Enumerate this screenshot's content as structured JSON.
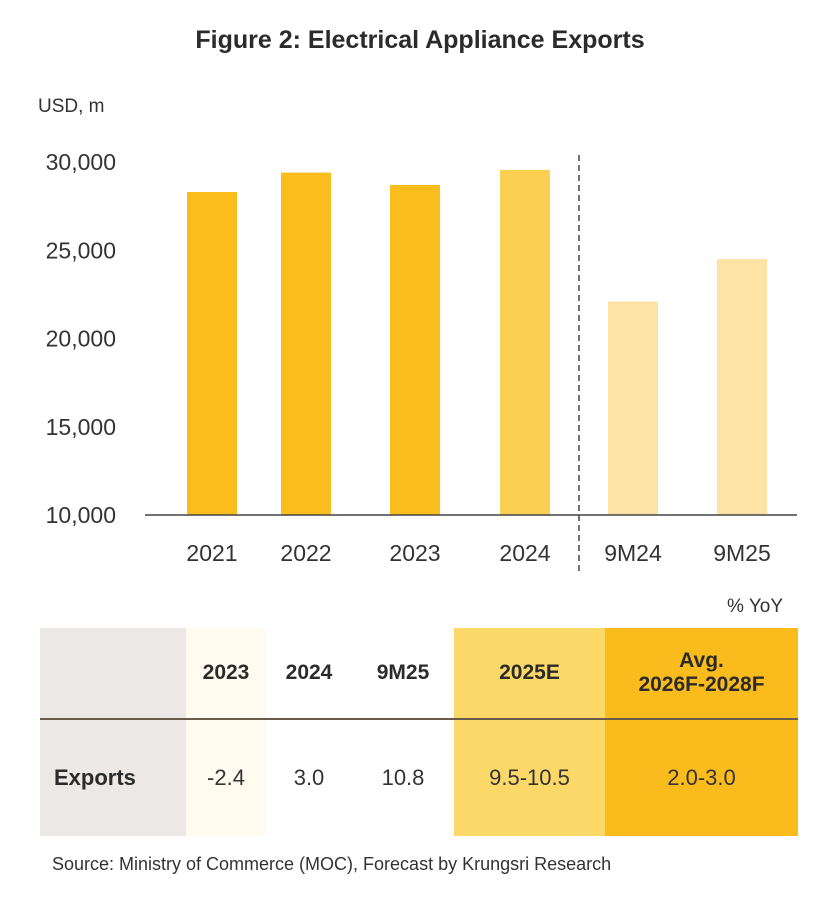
{
  "title": "Figure 2: Electrical Appliance Exports",
  "unit_label": "USD, m",
  "chart_data": {
    "type": "bar",
    "title": "Figure 2: Electrical Appliance Exports",
    "ylabel": "USD, m",
    "xlabel": "",
    "ylim": [
      10000,
      30000
    ],
    "yticks": [
      10000,
      15000,
      20000,
      25000,
      30000
    ],
    "ytick_labels": [
      "10,000",
      "15,000",
      "20,000",
      "25,000",
      "30,000"
    ],
    "categories": [
      "2021",
      "2022",
      "2023",
      "2024",
      "9M24",
      "9M25"
    ],
    "values": [
      28300,
      29400,
      28700,
      29550,
      22100,
      24500
    ],
    "bar_colors": [
      "#fbbc1d",
      "#fbbc1d",
      "#fbbc1d",
      "#fbcf52",
      "#fde4a6",
      "#fde4a6"
    ],
    "divider_after_index": 3
  },
  "table": {
    "unit": "% YoY",
    "headers": [
      "2023",
      "2024",
      "9M25",
      "2025E"
    ],
    "header_avg": [
      "Avg.",
      "2026F-2028F"
    ],
    "row_label": "Exports",
    "values": [
      "-2.4",
      "3.0",
      "10.8",
      "9.5-10.5",
      "2.0-3.0"
    ]
  },
  "source": "Source: Ministry of Commerce (MOC), Forecast by Krungsri Research"
}
